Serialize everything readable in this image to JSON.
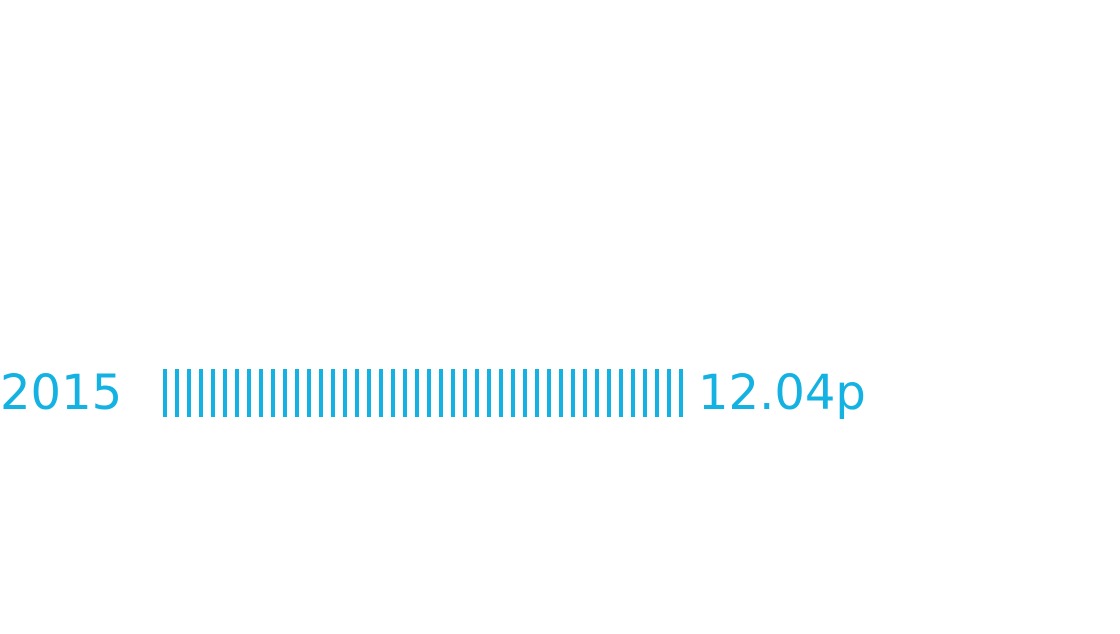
{
  "chart_data": {
    "type": "bar",
    "orientation": "horizontal",
    "categories": [
      "2015"
    ],
    "values": [
      12.04
    ],
    "value_labels": [
      "12.04p"
    ],
    "color": "#14b2e2"
  }
}
